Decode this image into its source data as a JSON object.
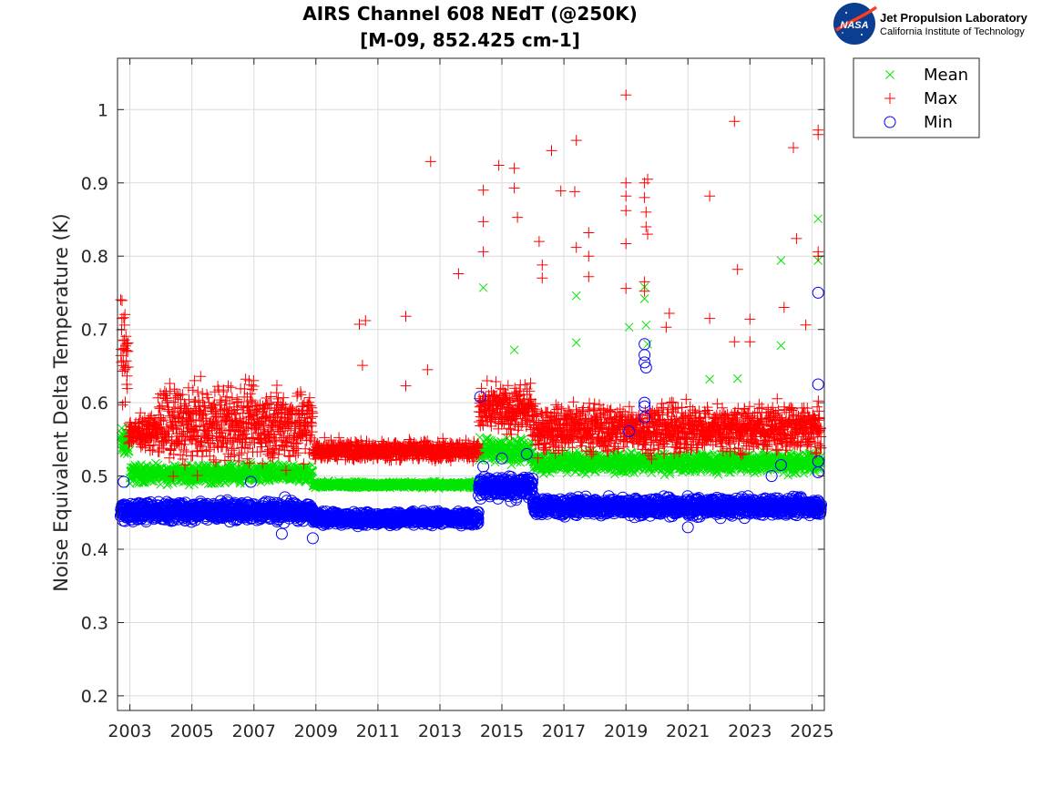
{
  "chart_data": {
    "type": "scatter",
    "title_lines": [
      "AIRS Channel 608 NEdT (@250K)",
      "[M-09, 852.425 cm-1]"
    ],
    "xlabel": "",
    "ylabel": "Noise Equivalent Delta Temperature (K)",
    "xlim": [
      2002.6,
      2025.4
    ],
    "ylim": [
      0.18,
      1.07
    ],
    "xticks": [
      2003,
      2005,
      2007,
      2009,
      2011,
      2013,
      2015,
      2017,
      2019,
      2021,
      2023,
      2025
    ],
    "yticks": [
      0.2,
      0.3,
      0.4,
      0.5,
      0.6,
      0.7,
      0.8,
      0.9,
      1
    ],
    "grid": true,
    "legend_position": "outside-top-right",
    "series": [
      {
        "name": "Mean",
        "marker": "x",
        "color": "#00e600",
        "segments": [
          {
            "from": 2002.7,
            "to": 2003.0,
            "base": 0.545,
            "spread": 0.02
          },
          {
            "from": 2003.0,
            "to": 2008.9,
            "base": 0.503,
            "spread": 0.012
          },
          {
            "from": 2008.9,
            "to": 2014.25,
            "base": 0.488,
            "spread": 0.004
          },
          {
            "from": 2014.25,
            "to": 2016.0,
            "base": 0.535,
            "spread": 0.015
          },
          {
            "from": 2016.0,
            "to": 2025.3,
            "base": 0.518,
            "spread": 0.013
          }
        ],
        "outliers": [
          {
            "x": 2014.4,
            "y": 0.757
          },
          {
            "x": 2015.4,
            "y": 0.672
          },
          {
            "x": 2017.4,
            "y": 0.746
          },
          {
            "x": 2017.4,
            "y": 0.682
          },
          {
            "x": 2019.1,
            "y": 0.703
          },
          {
            "x": 2019.6,
            "y": 0.758
          },
          {
            "x": 2019.6,
            "y": 0.742
          },
          {
            "x": 2019.65,
            "y": 0.706
          },
          {
            "x": 2019.7,
            "y": 0.68
          },
          {
            "x": 2021.7,
            "y": 0.632
          },
          {
            "x": 2022.6,
            "y": 0.633
          },
          {
            "x": 2024.0,
            "y": 0.794
          },
          {
            "x": 2024.0,
            "y": 0.678
          },
          {
            "x": 2025.2,
            "y": 0.851
          },
          {
            "x": 2025.2,
            "y": 0.794
          }
        ]
      },
      {
        "name": "Max",
        "marker": "+",
        "color": "#ff0000",
        "segments": [
          {
            "from": 2002.7,
            "to": 2002.95,
            "base": 0.67,
            "spread": 0.06
          },
          {
            "from": 2002.95,
            "to": 2003.9,
            "base": 0.56,
            "spread": 0.02
          },
          {
            "from": 2003.9,
            "to": 2008.9,
            "base": 0.57,
            "spread": 0.05
          },
          {
            "from": 2008.9,
            "to": 2014.25,
            "base": 0.535,
            "spread": 0.012
          },
          {
            "from": 2014.25,
            "to": 2016.0,
            "base": 0.59,
            "spread": 0.03
          },
          {
            "from": 2016.0,
            "to": 2025.3,
            "base": 0.565,
            "spread": 0.03
          }
        ],
        "outliers": [
          {
            "x": 2010.4,
            "y": 0.707
          },
          {
            "x": 2010.6,
            "y": 0.712
          },
          {
            "x": 2010.5,
            "y": 0.651
          },
          {
            "x": 2011.9,
            "y": 0.718
          },
          {
            "x": 2011.9,
            "y": 0.623
          },
          {
            "x": 2012.6,
            "y": 0.645
          },
          {
            "x": 2012.7,
            "y": 0.929
          },
          {
            "x": 2013.6,
            "y": 0.776
          },
          {
            "x": 2014.4,
            "y": 0.89
          },
          {
            "x": 2014.4,
            "y": 0.847
          },
          {
            "x": 2014.4,
            "y": 0.806
          },
          {
            "x": 2014.9,
            "y": 0.924
          },
          {
            "x": 2015.4,
            "y": 0.92
          },
          {
            "x": 2015.4,
            "y": 0.893
          },
          {
            "x": 2015.5,
            "y": 0.853
          },
          {
            "x": 2016.2,
            "y": 0.82
          },
          {
            "x": 2016.3,
            "y": 0.788
          },
          {
            "x": 2016.3,
            "y": 0.77
          },
          {
            "x": 2016.6,
            "y": 0.944
          },
          {
            "x": 2016.9,
            "y": 0.889
          },
          {
            "x": 2017.4,
            "y": 0.958
          },
          {
            "x": 2017.35,
            "y": 0.888
          },
          {
            "x": 2017.4,
            "y": 0.812
          },
          {
            "x": 2017.8,
            "y": 0.832
          },
          {
            "x": 2017.8,
            "y": 0.772
          },
          {
            "x": 2017.8,
            "y": 0.8
          },
          {
            "x": 2019.0,
            "y": 1.02
          },
          {
            "x": 2019.0,
            "y": 0.9
          },
          {
            "x": 2019.0,
            "y": 0.882
          },
          {
            "x": 2019.0,
            "y": 0.862
          },
          {
            "x": 2019.0,
            "y": 0.817
          },
          {
            "x": 2019.0,
            "y": 0.756
          },
          {
            "x": 2019.6,
            "y": 0.9
          },
          {
            "x": 2019.6,
            "y": 0.88
          },
          {
            "x": 2019.65,
            "y": 0.86
          },
          {
            "x": 2019.65,
            "y": 0.84
          },
          {
            "x": 2019.7,
            "y": 0.905
          },
          {
            "x": 2019.7,
            "y": 0.83
          },
          {
            "x": 2019.6,
            "y": 0.765
          },
          {
            "x": 2019.6,
            "y": 0.752
          },
          {
            "x": 2020.4,
            "y": 0.722
          },
          {
            "x": 2020.3,
            "y": 0.703
          },
          {
            "x": 2021.7,
            "y": 0.882
          },
          {
            "x": 2021.7,
            "y": 0.715
          },
          {
            "x": 2022.5,
            "y": 0.984
          },
          {
            "x": 2022.6,
            "y": 0.782
          },
          {
            "x": 2022.5,
            "y": 0.683
          },
          {
            "x": 2023.0,
            "y": 0.714
          },
          {
            "x": 2023.0,
            "y": 0.683
          },
          {
            "x": 2024.1,
            "y": 0.73
          },
          {
            "x": 2024.4,
            "y": 0.948
          },
          {
            "x": 2024.5,
            "y": 0.824
          },
          {
            "x": 2024.8,
            "y": 0.706
          },
          {
            "x": 2025.2,
            "y": 0.972
          },
          {
            "x": 2025.2,
            "y": 0.966
          },
          {
            "x": 2025.2,
            "y": 0.806
          },
          {
            "x": 2025.2,
            "y": 0.8
          }
        ]
      },
      {
        "name": "Min",
        "marker": "o",
        "color": "#0000ff",
        "segments": [
          {
            "from": 2002.7,
            "to": 2008.9,
            "base": 0.452,
            "spread": 0.012
          },
          {
            "from": 2008.9,
            "to": 2014.25,
            "base": 0.442,
            "spread": 0.008
          },
          {
            "from": 2014.25,
            "to": 2016.0,
            "base": 0.485,
            "spread": 0.015
          },
          {
            "from": 2016.0,
            "to": 2025.3,
            "base": 0.458,
            "spread": 0.011
          }
        ],
        "outliers": [
          {
            "x": 2002.8,
            "y": 0.492
          },
          {
            "x": 2006.9,
            "y": 0.492
          },
          {
            "x": 2007.9,
            "y": 0.421
          },
          {
            "x": 2008.0,
            "y": 0.471
          },
          {
            "x": 2008.9,
            "y": 0.415
          },
          {
            "x": 2014.3,
            "y": 0.608
          },
          {
            "x": 2014.4,
            "y": 0.513
          },
          {
            "x": 2015.0,
            "y": 0.524
          },
          {
            "x": 2015.8,
            "y": 0.53
          },
          {
            "x": 2019.1,
            "y": 0.561
          },
          {
            "x": 2019.6,
            "y": 0.68
          },
          {
            "x": 2019.6,
            "y": 0.665
          },
          {
            "x": 2019.6,
            "y": 0.655
          },
          {
            "x": 2019.65,
            "y": 0.648
          },
          {
            "x": 2019.6,
            "y": 0.6
          },
          {
            "x": 2019.6,
            "y": 0.595
          },
          {
            "x": 2019.6,
            "y": 0.58
          },
          {
            "x": 2021.0,
            "y": 0.43
          },
          {
            "x": 2023.7,
            "y": 0.5
          },
          {
            "x": 2024.0,
            "y": 0.515
          },
          {
            "x": 2025.2,
            "y": 0.75
          },
          {
            "x": 2025.2,
            "y": 0.625
          },
          {
            "x": 2025.2,
            "y": 0.52
          },
          {
            "x": 2025.2,
            "y": 0.505
          }
        ]
      }
    ]
  },
  "logo": {
    "badge_text": "NASA",
    "org_name": "Jet Propulsion Laboratory",
    "org_subtitle": "California Institute of Technology"
  },
  "colors": {
    "grid": "#dcdcdc",
    "axis": "#262626",
    "nasa_blue": "#0b3d91",
    "nasa_red": "#fc3d21"
  }
}
